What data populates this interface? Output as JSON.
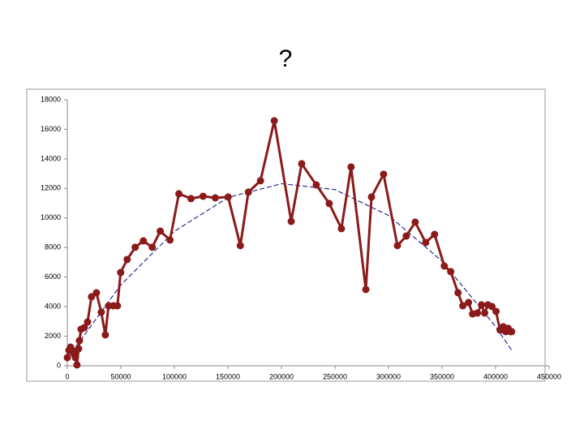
{
  "chart_data": {
    "type": "line",
    "title": "?",
    "x": [
      0,
      1500,
      3000,
      4500,
      6000,
      7500,
      9000,
      10500,
      11300,
      12800,
      15900,
      18900,
      22600,
      27200,
      31700,
      35500,
      38500,
      43000,
      46800,
      49800,
      55900,
      63400,
      71000,
      79300,
      86800,
      95900,
      104200,
      115500,
      126800,
      138200,
      150200,
      161600,
      169100,
      180400,
      193300,
      209100,
      218900,
      232500,
      244600,
      256000,
      265000,
      278800,
      284100,
      295400,
      308300,
      316600,
      324900,
      334700,
      343000,
      352100,
      358100,
      364900,
      369400,
      374700,
      378500,
      383000,
      386800,
      389800,
      392800,
      396600,
      400400,
      404200,
      407200,
      409500,
      411800,
      414000,
      415000
    ],
    "series": [
      {
        "color": "#8b1a1a",
        "values": [
          550,
          1040,
          1260,
          1040,
          820,
          550,
          60,
          1150,
          1700,
          2470,
          2580,
          2960,
          4670,
          4940,
          3620,
          2090,
          4060,
          4060,
          4060,
          6310,
          7190,
          8020,
          8450,
          8020,
          9110,
          8510,
          11640,
          11310,
          11470,
          11360,
          11420,
          8130,
          11750,
          12520,
          16580,
          9770,
          13670,
          12240,
          10980,
          9280,
          13450,
          5160,
          11420,
          12960,
          8130,
          8780,
          9720,
          8340,
          8890,
          6750,
          6370,
          4940,
          4060,
          4280,
          3510,
          3570,
          4120,
          3570,
          4120,
          4010,
          3680,
          2420,
          2640,
          2310,
          2530,
          2310,
          2310
        ]
      }
    ],
    "trendline": {
      "color": "#2b2b8c",
      "style": "dashed",
      "x": [
        0,
        50000,
        100000,
        150000,
        200000,
        250000,
        300000,
        350000,
        400000,
        415000
      ],
      "values": [
        500,
        5470,
        9100,
        11380,
        12320,
        11920,
        10170,
        7080,
        2650,
        1060
      ]
    },
    "xlim": [
      0,
      450000
    ],
    "xticks": [
      0,
      50000,
      100000,
      150000,
      200000,
      250000,
      300000,
      350000,
      400000,
      450000
    ],
    "ylim": [
      0,
      18000
    ],
    "yticks": [
      0,
      2000,
      4000,
      6000,
      8000,
      10000,
      12000,
      14000,
      16000,
      18000
    ],
    "grid": false
  }
}
